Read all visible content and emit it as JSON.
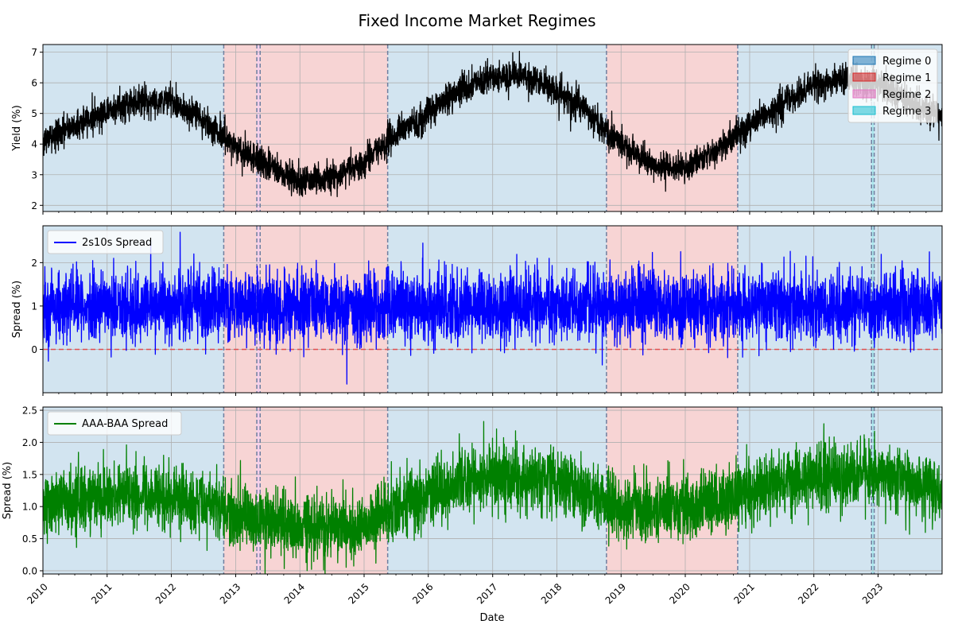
{
  "figure": {
    "title": "Fixed Income Market Regimes"
  },
  "colors": {
    "regime_0": "#1f77b4",
    "regime_1": "#d62728",
    "regime_2": "#e377c2",
    "regime_3": "#17becf",
    "yield_line": "#000000",
    "spread_line": "#0000ff",
    "credit_line": "#008000",
    "zero_line": "#e05050",
    "grid": "#b0b0b0",
    "boundary": "#6f7f9f"
  },
  "chart_data": [
    {
      "type": "line",
      "title": "",
      "xlabel": "",
      "ylabel": "Yield (%)",
      "xlim": [
        "2010-01-01",
        "2023-12-31"
      ],
      "ylim": [
        1.8,
        7.25
      ],
      "yticks": [
        2,
        3,
        4,
        5,
        6,
        7
      ],
      "ytick_labels": [
        "2",
        "3",
        "4",
        "5",
        "6",
        "7"
      ],
      "grid": true,
      "legend": {
        "placement": "top-right",
        "entries": [
          {
            "label": "Regime 0",
            "color_key": "regime_0"
          },
          {
            "label": "Regime 1",
            "color_key": "regime_1"
          },
          {
            "label": "Regime 2",
            "color_key": "regime_2"
          },
          {
            "label": "Regime 3",
            "color_key": "regime_3"
          }
        ]
      },
      "series": [
        {
          "color_key": "yield_line",
          "x": [
            "2010-01-01",
            "2010-07-01",
            "2011-01-01",
            "2011-07-01",
            "2012-01-01",
            "2012-07-01",
            "2013-01-01",
            "2013-07-01",
            "2014-01-01",
            "2014-07-01",
            "2015-01-01",
            "2015-07-01",
            "2016-01-01",
            "2016-07-01",
            "2017-01-01",
            "2017-07-01",
            "2018-01-01",
            "2018-07-01",
            "2019-01-01",
            "2019-07-01",
            "2020-01-01",
            "2020-07-01",
            "2021-01-01",
            "2021-07-01",
            "2022-01-01",
            "2022-07-01",
            "2023-01-01",
            "2023-07-01",
            "2023-12-31"
          ],
          "y": [
            4.1,
            4.6,
            5.1,
            5.4,
            5.4,
            4.8,
            3.9,
            3.3,
            2.8,
            2.9,
            3.4,
            4.3,
            5.0,
            5.8,
            6.2,
            6.2,
            5.8,
            5.0,
            4.0,
            3.3,
            3.2,
            3.8,
            4.6,
            5.3,
            5.9,
            6.2,
            5.9,
            5.4,
            4.9
          ],
          "noise": 0.25
        }
      ]
    },
    {
      "type": "line",
      "title": "",
      "xlabel": "",
      "ylabel": "Spread (%)",
      "xlim": [
        "2010-01-01",
        "2023-12-31"
      ],
      "ylim": [
        -1.0,
        2.85
      ],
      "yticks": [
        0,
        1,
        2
      ],
      "ytick_labels": [
        "0",
        "1",
        "2"
      ],
      "grid": true,
      "reference_line": {
        "y": 0,
        "style": "dashed",
        "color_key": "zero_line"
      },
      "legend": {
        "placement": "top-left",
        "entries": [
          {
            "label": "2s10s Spread",
            "color_key": "spread_line"
          }
        ]
      },
      "series": [
        {
          "name": "2s10s Spread",
          "color_key": "spread_line",
          "x": [
            "2010-01-01",
            "2023-12-31"
          ],
          "y": [
            1.0,
            1.0
          ],
          "noise": 0.4,
          "spikes": [
            {
              "x": "2012-02-20",
              "y": 2.7
            },
            {
              "x": "2014-09-25",
              "y": -0.8
            },
            {
              "x": "2015-12-01",
              "y": 2.45
            },
            {
              "x": "2023-10-20",
              "y": 2.25
            }
          ]
        }
      ]
    },
    {
      "type": "line",
      "title": "",
      "xlabel": "Date",
      "ylabel": "Spread (%)",
      "xlim": [
        "2010-01-01",
        "2023-12-31"
      ],
      "ylim": [
        -0.05,
        2.55
      ],
      "yticks": [
        0.0,
        0.5,
        1.0,
        1.5,
        2.0,
        2.5
      ],
      "ytick_labels": [
        "0.0",
        "0.5",
        "1.0",
        "1.5",
        "2.0",
        "2.5"
      ],
      "xtick_labels": [
        "2010",
        "2011",
        "2012",
        "2013",
        "2014",
        "2015",
        "2016",
        "2017",
        "2018",
        "2019",
        "2020",
        "2021",
        "2022",
        "2023"
      ],
      "grid": true,
      "legend": {
        "placement": "top-left",
        "entries": [
          {
            "label": "AAA-BAA Spread",
            "color_key": "credit_line"
          }
        ]
      },
      "series": [
        {
          "name": "AAA-BAA Spread",
          "color_key": "credit_line",
          "x": [
            "2010-01-01",
            "2011-01-01",
            "2012-01-01",
            "2013-01-01",
            "2014-01-01",
            "2015-01-01",
            "2015-06-01",
            "2016-01-01",
            "2017-01-01",
            "2018-01-01",
            "2019-01-01",
            "2020-01-01",
            "2021-01-01",
            "2022-01-01",
            "2023-01-01",
            "2023-12-31"
          ],
          "y": [
            1.0,
            1.2,
            1.15,
            0.85,
            0.65,
            0.7,
            0.95,
            1.2,
            1.45,
            1.4,
            1.0,
            0.95,
            1.25,
            1.45,
            1.5,
            1.25
          ],
          "noise": 0.25
        }
      ]
    }
  ],
  "regimes": [
    {
      "start": "2010-01-01",
      "end": "2012-10-25",
      "regime": 0
    },
    {
      "start": "2012-10-25",
      "end": "2013-05-01",
      "regime": 1
    },
    {
      "start": "2013-05-01",
      "end": "2013-05-20",
      "regime": 2
    },
    {
      "start": "2013-05-20",
      "end": "2015-05-15",
      "regime": 1
    },
    {
      "start": "2015-05-15",
      "end": "2018-10-10",
      "regime": 0
    },
    {
      "start": "2018-10-10",
      "end": "2020-10-25",
      "regime": 1
    },
    {
      "start": "2020-10-25",
      "end": "2022-11-25",
      "regime": 0
    },
    {
      "start": "2022-11-25",
      "end": "2022-12-10",
      "regime": 3
    },
    {
      "start": "2022-12-10",
      "end": "2023-12-31",
      "regime": 0
    }
  ]
}
